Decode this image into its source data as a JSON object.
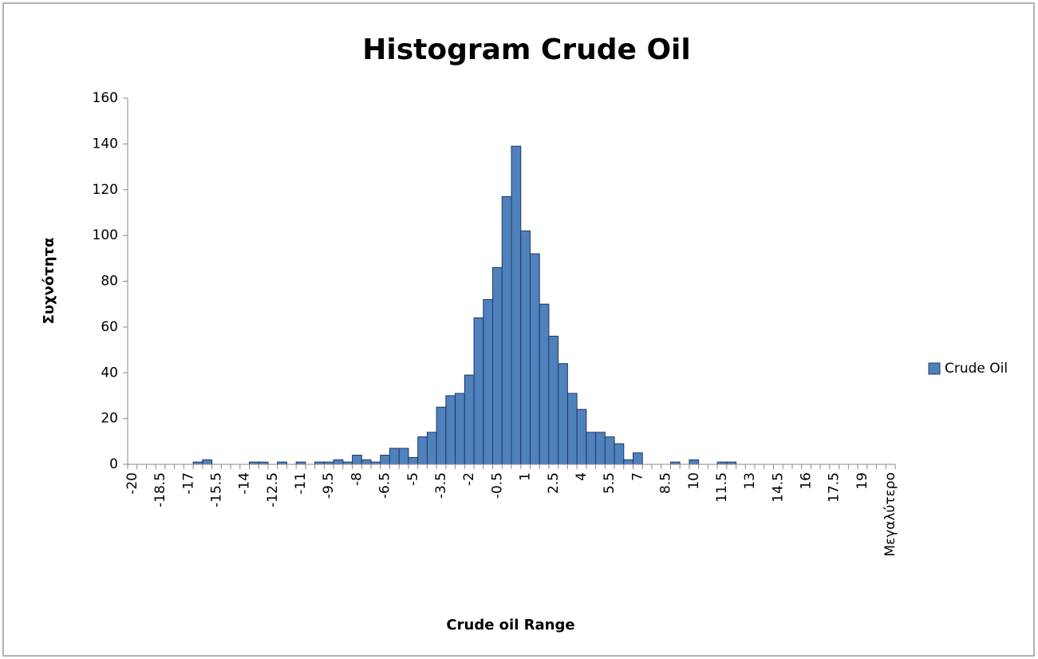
{
  "chart_data": {
    "type": "bar",
    "title": "Histogram Crude Oil",
    "x_label": "Crude oil Range",
    "y_label": "Συχνότητα",
    "categories": [
      "-20",
      null,
      null,
      "-18.5",
      null,
      null,
      "-17",
      null,
      null,
      "-15.5",
      null,
      null,
      "-14",
      null,
      null,
      "-12.5",
      null,
      null,
      "-11",
      null,
      null,
      "-9.5",
      null,
      null,
      "-8",
      null,
      null,
      "-6.5",
      null,
      null,
      "-5",
      null,
      null,
      "-3.5",
      null,
      null,
      "-2",
      null,
      null,
      "-0.5",
      null,
      null,
      "1",
      null,
      null,
      "2.5",
      null,
      null,
      "4",
      null,
      null,
      "5.5",
      null,
      null,
      "7",
      null,
      null,
      "8.5",
      null,
      null,
      "10",
      null,
      null,
      "11.5",
      null,
      null,
      "13",
      null,
      null,
      "14.5",
      null,
      null,
      "16",
      null,
      null,
      "17.5",
      null,
      null,
      "19",
      null,
      null,
      "Μεγαλύτερο"
    ],
    "series": [
      {
        "name": "Crude Oil",
        "color": "#4f81bd",
        "values": [
          0,
          0,
          0,
          0,
          0,
          0,
          0,
          1,
          2,
          0,
          0,
          0,
          0,
          1,
          1,
          0,
          1,
          0,
          1,
          0,
          1,
          1,
          2,
          1,
          4,
          2,
          1,
          4,
          7,
          7,
          3,
          12,
          14,
          25,
          30,
          31,
          39,
          64,
          72,
          86,
          117,
          139,
          102,
          92,
          70,
          56,
          44,
          31,
          24,
          14,
          14,
          12,
          9,
          2,
          5,
          0,
          0,
          0,
          1,
          0,
          2,
          0,
          0,
          1,
          1,
          0,
          0,
          0,
          0,
          0,
          0,
          0,
          0,
          0,
          0,
          0,
          0,
          0,
          0,
          0,
          0,
          0
        ]
      }
    ],
    "ylim": [
      0,
      160
    ],
    "yticks": [
      0,
      20,
      40,
      60,
      80,
      100,
      120,
      140,
      160
    ],
    "grid": false,
    "legend": "right"
  }
}
